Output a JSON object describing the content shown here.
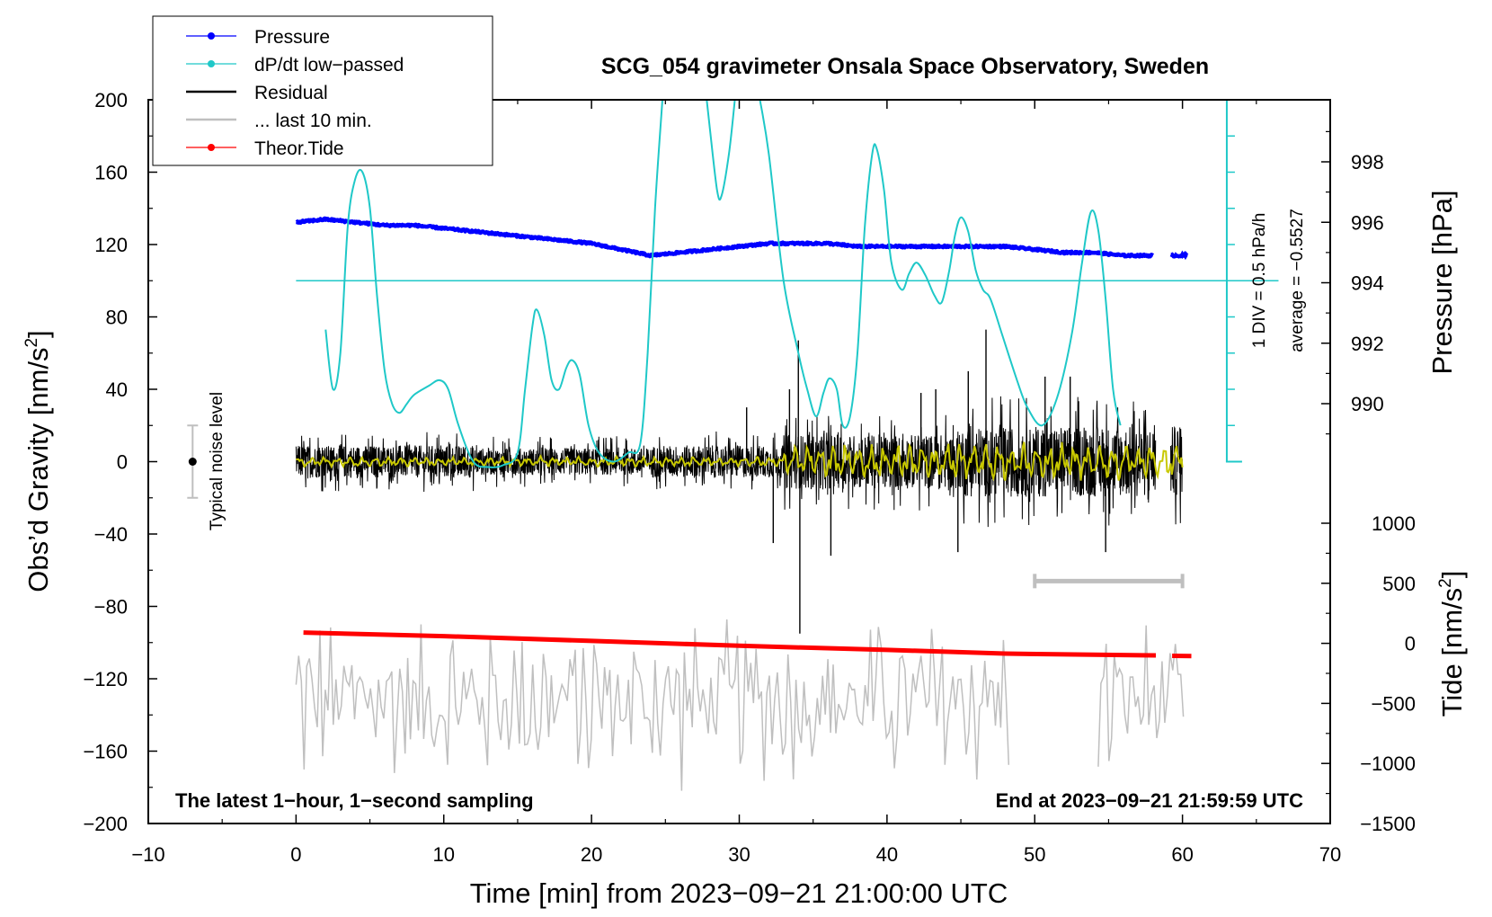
{
  "chart_data": {
    "type": "line",
    "title": "SCG_054 gravimeter Onsala Space Observatory, Sweden",
    "xlabel": "Time [min] from 2023−09−21 21:00:00 UTC",
    "ylabel_left": "Obs’d Gravity [nm/s",
    "ylabel_left_sup": "2",
    "ylabel_left_close": "]",
    "ylabel_pressure": "Pressure [hPa]",
    "ylabel_tide": "Tide [nm/s",
    "ylabel_tide_sup": "2",
    "ylabel_tide_close": "]",
    "xlim": [
      -10,
      70
    ],
    "ylim_left": [
      -200,
      200
    ],
    "x_ticks": [
      -10,
      0,
      10,
      20,
      30,
      40,
      50,
      60,
      70
    ],
    "x_tick_labels": [
      "−10",
      "0",
      "10",
      "20",
      "30",
      "40",
      "50",
      "60",
      "70"
    ],
    "y_ticks_left": [
      200,
      160,
      120,
      80,
      40,
      0,
      -40,
      -80,
      -120,
      -160,
      -200
    ],
    "y_tick_labels_left": [
      "200",
      "160",
      "120",
      "80",
      "40",
      "0",
      "−40",
      "−80",
      "−120",
      "−160",
      "−200"
    ],
    "pressure_axis": {
      "range": [
        988,
        998
      ],
      "ticks": [
        998,
        996,
        994,
        992,
        990
      ],
      "tick_labels": [
        "998",
        "996",
        "994",
        "992",
        "990"
      ]
    },
    "tide_axis": {
      "range": [
        -1500,
        1000
      ],
      "ticks": [
        1000,
        500,
        0,
        -500,
        -1000,
        -1500
      ],
      "tick_labels": [
        "1000",
        "500",
        "0",
        "−500",
        "−1000",
        "−1500"
      ]
    },
    "legend": {
      "placement": "top-left",
      "entries": [
        {
          "label": "Pressure",
          "color": "#0000ff",
          "marker": true
        },
        {
          "label": "dP/dt low−passed",
          "color": "#1fc8c8",
          "marker": true
        },
        {
          "label": "Residual",
          "color": "#000000",
          "marker": false
        },
        {
          "label": "... last 10 min.",
          "color": "#bfbfbf",
          "marker": false
        },
        {
          "label": "Theor.Tide",
          "color": "#ff0000",
          "marker": true
        }
      ]
    },
    "annotations": {
      "latest": "The latest 1−hour, 1−second sampling",
      "end": "End at 2023−09−21 21:59:59 UTC",
      "noise": "Typical noise level",
      "div": "1 DIV = 0.5 hPa/h",
      "average": "average = −0.5527"
    },
    "noise_bar": {
      "x": -7,
      "center": 0,
      "half_range": 20
    },
    "dpdt_scale": {
      "x": 63,
      "baseline": 0,
      "top": 200,
      "zero_line": 100
    },
    "last10_bar": {
      "x_start": 50,
      "x_end": 60,
      "y": -66
    },
    "series": [
      {
        "name": "Pressure",
        "axis": "pressure",
        "color": "#0000ff",
        "points": [
          [
            0,
            996.0
          ],
          [
            2,
            996.1
          ],
          [
            4,
            996.0
          ],
          [
            6,
            995.9
          ],
          [
            8,
            995.9
          ],
          [
            10,
            995.8
          ],
          [
            12,
            995.7
          ],
          [
            14,
            995.6
          ],
          [
            16,
            995.5
          ],
          [
            18,
            995.4
          ],
          [
            20,
            995.3
          ],
          [
            22,
            995.1
          ],
          [
            24,
            994.9
          ],
          [
            26,
            995.0
          ],
          [
            28,
            995.1
          ],
          [
            30,
            995.2
          ],
          [
            32,
            995.3
          ],
          [
            34,
            995.3
          ],
          [
            36,
            995.3
          ],
          [
            38,
            995.2
          ],
          [
            40,
            995.2
          ],
          [
            42,
            995.2
          ],
          [
            44,
            995.2
          ],
          [
            46,
            995.2
          ],
          [
            48,
            995.2
          ],
          [
            50,
            995.1
          ],
          [
            52,
            995.0
          ],
          [
            54,
            995.0
          ],
          [
            56,
            994.9
          ],
          [
            58,
            994.9
          ]
        ],
        "points_tail": [
          [
            59.2,
            994.9
          ],
          [
            60.3,
            994.9
          ]
        ]
      },
      {
        "name": "dP/dt low−passed",
        "axis": "left",
        "color": "#1fc8c8",
        "points": [
          [
            2,
            73
          ],
          [
            2.5,
            40
          ],
          [
            3,
            60
          ],
          [
            3.5,
            130
          ],
          [
            4,
            156
          ],
          [
            4.5,
            160
          ],
          [
            5,
            140
          ],
          [
            5.5,
            90
          ],
          [
            6,
            50
          ],
          [
            6.5,
            32
          ],
          [
            7,
            27
          ],
          [
            7.5,
            32
          ],
          [
            8,
            37
          ],
          [
            9,
            42
          ],
          [
            9.7,
            45
          ],
          [
            10.3,
            40
          ],
          [
            11,
            20
          ],
          [
            12,
            0
          ],
          [
            13,
            -3
          ],
          [
            14,
            -2
          ],
          [
            15,
            5
          ],
          [
            15.5,
            40
          ],
          [
            16,
            75
          ],
          [
            16.3,
            84
          ],
          [
            16.8,
            70
          ],
          [
            17.3,
            45
          ],
          [
            17.8,
            40
          ],
          [
            18.3,
            52
          ],
          [
            18.7,
            56
          ],
          [
            19.2,
            48
          ],
          [
            19.8,
            20
          ],
          [
            20.5,
            5
          ],
          [
            21.5,
            0
          ],
          [
            22.5,
            5
          ],
          [
            23.3,
            10
          ],
          [
            23.8,
            60
          ],
          [
            24.3,
            140
          ],
          [
            24.8,
            200
          ]
        ],
        "points_b": [
          [
            27.8,
            200
          ],
          [
            28.0,
            185
          ],
          [
            28.5,
            150
          ],
          [
            28.8,
            147
          ],
          [
            29.3,
            170
          ],
          [
            29.7,
            200
          ]
        ],
        "points_c": [
          [
            31.4,
            200
          ],
          [
            32,
            170
          ],
          [
            33,
            100
          ],
          [
            34,
            60
          ],
          [
            34.6,
            40
          ],
          [
            35.2,
            25
          ],
          [
            35.7,
            38
          ],
          [
            36.1,
            46
          ],
          [
            36.6,
            40
          ],
          [
            37,
            20
          ],
          [
            37.5,
            25
          ],
          [
            38,
            60
          ],
          [
            38.5,
            130
          ],
          [
            39,
            170
          ],
          [
            39.3,
            173
          ],
          [
            39.8,
            150
          ],
          [
            40.3,
            110
          ],
          [
            41,
            95
          ],
          [
            41.5,
            104
          ],
          [
            42,
            110
          ],
          [
            42.6,
            103
          ],
          [
            43.2,
            92
          ],
          [
            43.7,
            88
          ],
          [
            44.2,
            105
          ],
          [
            44.6,
            125
          ],
          [
            45,
            135
          ],
          [
            45.5,
            127
          ],
          [
            46,
            106
          ],
          [
            46.5,
            95
          ],
          [
            47,
            90
          ],
          [
            47.8,
            70
          ],
          [
            48.8,
            45
          ],
          [
            49.5,
            30
          ],
          [
            50.5,
            20
          ],
          [
            51.5,
            35
          ],
          [
            52.5,
            70
          ],
          [
            53.2,
            110
          ],
          [
            53.8,
            138
          ],
          [
            54.3,
            128
          ],
          [
            54.8,
            90
          ],
          [
            55.3,
            40
          ],
          [
            55.8,
            20
          ]
        ]
      },
      {
        "name": "Residual",
        "axis": "left",
        "color": "#000000",
        "x_start": 0,
        "x_end": 60,
        "amplitude_segments": [
          [
            0,
            12,
            12
          ],
          [
            12,
            24,
            10
          ],
          [
            24,
            33,
            12
          ],
          [
            33,
            45,
            20
          ],
          [
            45,
            60,
            26
          ]
        ],
        "spikes": [
          [
            34.0,
            67
          ],
          [
            34.1,
            -95
          ],
          [
            33.4,
            40
          ],
          [
            32.3,
            -45
          ],
          [
            46.7,
            73
          ],
          [
            45.5,
            50
          ],
          [
            50.7,
            47
          ],
          [
            52.4,
            47
          ],
          [
            44.8,
            -50
          ],
          [
            54.8,
            -50
          ],
          [
            43.3,
            40
          ],
          [
            42.3,
            38
          ],
          [
            36.2,
            -52
          ],
          [
            30.5,
            30
          ]
        ],
        "gap": [
          58.2,
          59.2
        ]
      },
      {
        "name": "Low−pass residual",
        "axis": "left",
        "color": "#c8c800",
        "x_start": 0,
        "x_end": 60
      },
      {
        "name": "... last 10 min.",
        "axis": "left",
        "color": "#bfbfbf",
        "offset": -132,
        "amplitude": 35,
        "x_start": 0,
        "x_end": 48.3,
        "x_start_b": 54.3,
        "x_end_b": 60.2
      },
      {
        "name": "Theor.Tide",
        "axis": "tide",
        "color": "#ff0000",
        "points": [
          [
            0.5,
            90
          ],
          [
            10,
            60
          ],
          [
            20,
            20
          ],
          [
            30,
            -20
          ],
          [
            40,
            -55
          ],
          [
            48,
            -85
          ],
          [
            54,
            -95
          ],
          [
            58.2,
            -100
          ]
        ],
        "points_tail": [
          [
            59.3,
            -104
          ],
          [
            60.6,
            -106
          ]
        ]
      }
    ]
  }
}
